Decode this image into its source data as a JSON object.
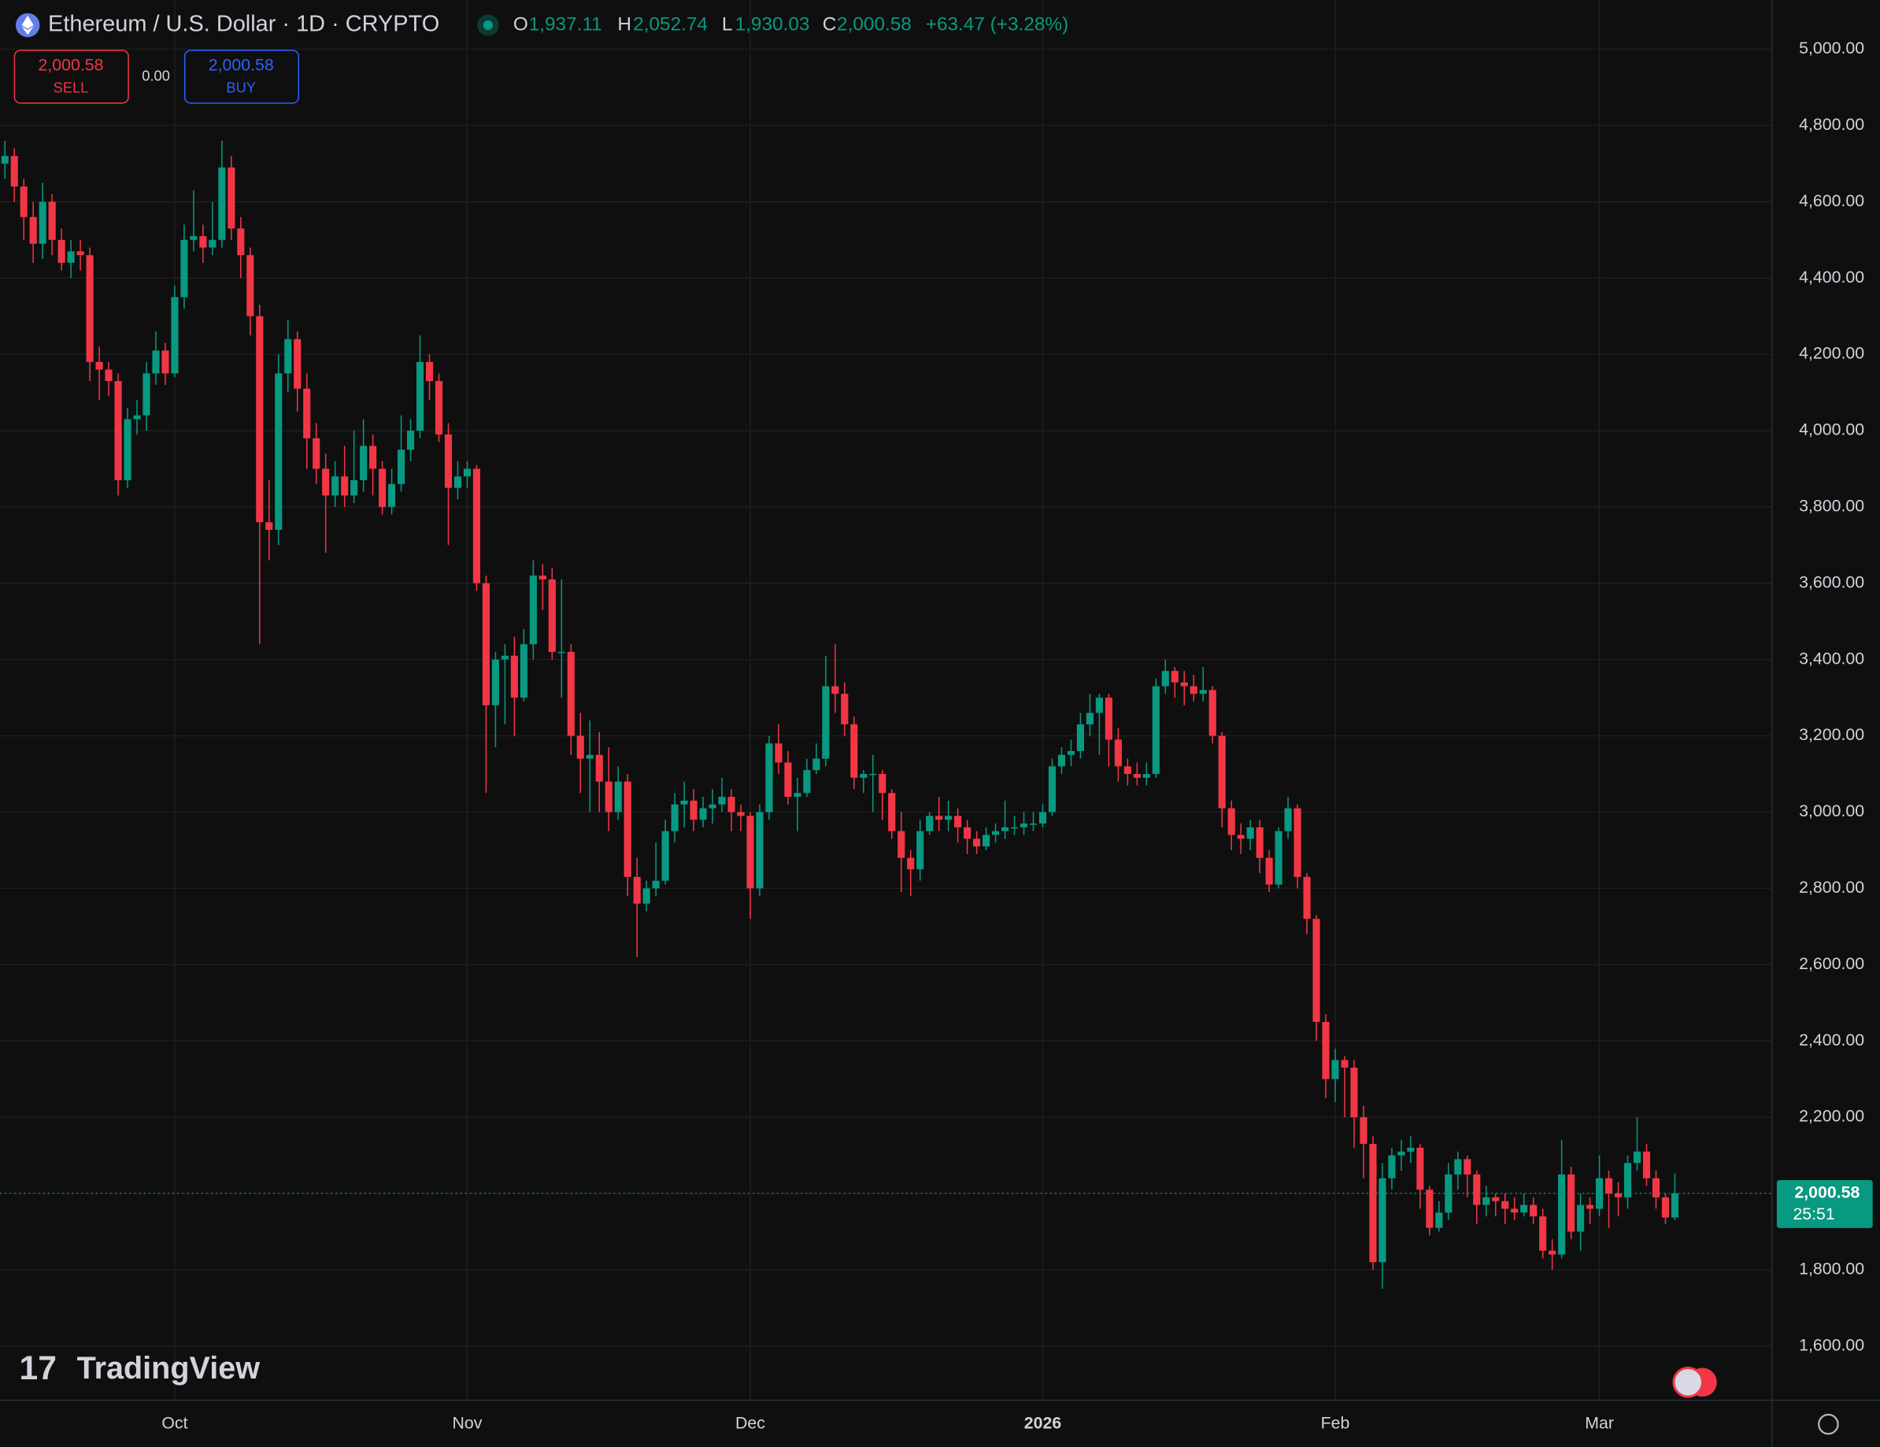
{
  "header": {
    "symbol": "Ethereum / U.S. Dollar · 1D · CRYPTO",
    "o_label": "O",
    "o": "1,937.11",
    "h_label": "H",
    "h": "2,052.74",
    "l_label": "L",
    "l": "1,930.03",
    "c_label": "C",
    "c": "2,000.58",
    "change": "+63.47 (+3.28%)"
  },
  "trade": {
    "sell_price": "2,000.58",
    "sell": "SELL",
    "spread": "0.00",
    "buy_price": "2,000.58",
    "buy": "BUY"
  },
  "price_tag": {
    "price": "2,000.58",
    "countdown": "25:51"
  },
  "logo": "TradingView",
  "chart_data": {
    "type": "candlestick",
    "up_color": "#089981",
    "down_color": "#f23645",
    "grid": true,
    "categories": [
      null,
      null,
      null,
      null,
      null,
      null,
      null,
      null,
      null,
      null,
      null,
      null,
      null,
      null,
      null,
      null,
      null,
      null,
      "Oct",
      null,
      null,
      null,
      null,
      null,
      null,
      null,
      null,
      null,
      null,
      null,
      null,
      null,
      null,
      null,
      null,
      null,
      null,
      null,
      null,
      null,
      null,
      null,
      null,
      null,
      null,
      null,
      null,
      null,
      null,
      "Nov",
      null,
      null,
      null,
      null,
      null,
      null,
      null,
      null,
      null,
      null,
      null,
      null,
      null,
      null,
      null,
      null,
      null,
      null,
      null,
      null,
      null,
      null,
      null,
      null,
      null,
      null,
      null,
      null,
      null,
      "Dec",
      null,
      null,
      null,
      null,
      null,
      null,
      null,
      null,
      null,
      null,
      null,
      null,
      null,
      null,
      null,
      null,
      null,
      null,
      null,
      null,
      null,
      null,
      null,
      null,
      null,
      null,
      null,
      null,
      null,
      null,
      "2026",
      null,
      null,
      null,
      null,
      null,
      null,
      null,
      null,
      null,
      null,
      null,
      null,
      null,
      null,
      null,
      null,
      null,
      null,
      null,
      null,
      null,
      null,
      null,
      null,
      null,
      null,
      null,
      null,
      null,
      null,
      "Feb",
      null,
      null,
      null,
      null,
      null,
      null,
      null,
      null,
      null,
      null,
      null,
      null,
      null,
      null,
      null,
      null,
      null,
      null,
      null,
      null,
      null,
      null,
      null,
      null,
      null,
      null,
      null,
      "Mar",
      null,
      null,
      null,
      null,
      null,
      null,
      null,
      null
    ],
    "open": [
      4700,
      4720,
      4640,
      4560,
      4490,
      4600,
      4500,
      4440,
      4470,
      4460,
      4180,
      4160,
      4130,
      3870,
      4030,
      4040,
      4150,
      4210,
      4150,
      4350,
      4500,
      4510,
      4480,
      4500,
      4690,
      4530,
      4460,
      4300,
      3760,
      3740,
      4150,
      4240,
      4110,
      3980,
      3900,
      3830,
      3880,
      3830,
      3870,
      3960,
      3900,
      3800,
      3860,
      3950,
      4000,
      4180,
      4130,
      3990,
      3850,
      3880,
      3900,
      3600,
      3280,
      3400,
      3410,
      3300,
      3440,
      3620,
      3610,
      3420,
      3420,
      3200,
      3140,
      3150,
      3080,
      3000,
      3080,
      2830,
      2760,
      2800,
      2820,
      2950,
      3020,
      3030,
      2980,
      3010,
      3020,
      3040,
      3000,
      2990,
      2800,
      3000,
      3180,
      3130,
      3040,
      3050,
      3110,
      3140,
      3330,
      3310,
      3230,
      3090,
      3100,
      3100,
      3050,
      2950,
      2880,
      2850,
      2950,
      2990,
      2980,
      2990,
      2960,
      2930,
      2910,
      2940,
      2950,
      2960,
      2960,
      2970,
      2970,
      3000,
      3120,
      3150,
      3160,
      3230,
      3260,
      3300,
      3190,
      3120,
      3100,
      3090,
      3100,
      3330,
      3370,
      3340,
      3330,
      3310,
      3320,
      3200,
      3010,
      2940,
      2930,
      2960,
      2880,
      2810,
      2950,
      3010,
      2830,
      2720,
      2450,
      2300,
      2350,
      2330,
      2200,
      2130,
      1820,
      2040,
      2100,
      2110,
      2120,
      2010,
      1910,
      1950,
      2050,
      2090,
      2050,
      1970,
      1990,
      1980,
      1960,
      1950,
      1970,
      1940,
      1850,
      1840,
      2050,
      1900,
      1970,
      1960,
      2040,
      2000,
      1990,
      2080,
      2110,
      2040,
      1990,
      1937.11
    ],
    "high": [
      4760,
      4740,
      4660,
      4600,
      4650,
      4620,
      4530,
      4500,
      4500,
      4480,
      4220,
      4180,
      4150,
      4060,
      4080,
      4180,
      4260,
      4230,
      4380,
      4540,
      4630,
      4540,
      4600,
      4760,
      4720,
      4560,
      4480,
      4330,
      3870,
      4200,
      4290,
      4260,
      4150,
      4020,
      3940,
      3920,
      3960,
      4000,
      4030,
      3990,
      3920,
      3900,
      4040,
      4030,
      4250,
      4200,
      4150,
      4020,
      3920,
      3920,
      3910,
      3620,
      3420,
      3440,
      3460,
      3480,
      3660,
      3650,
      3640,
      3610,
      3440,
      3260,
      3240,
      3210,
      3170,
      3120,
      3100,
      2880,
      2820,
      2920,
      2980,
      3050,
      3080,
      3060,
      3040,
      3060,
      3090,
      3060,
      3020,
      3000,
      3020,
      3200,
      3230,
      3160,
      3090,
      3140,
      3180,
      3410,
      3440,
      3340,
      3250,
      3110,
      3150,
      3110,
      3060,
      3000,
      2900,
      2980,
      3000,
      3040,
      3030,
      3010,
      2980,
      2950,
      2960,
      2970,
      3030,
      2990,
      3000,
      3000,
      3020,
      3140,
      3170,
      3190,
      3260,
      3310,
      3310,
      3310,
      3220,
      3140,
      3130,
      3130,
      3350,
      3400,
      3380,
      3370,
      3360,
      3380,
      3330,
      3210,
      3030,
      2970,
      2980,
      2980,
      2900,
      2960,
      3040,
      3020,
      2840,
      2730,
      2470,
      2380,
      2360,
      2350,
      2230,
      2150,
      2080,
      2120,
      2140,
      2150,
      2130,
      2020,
      1980,
      2080,
      2110,
      2100,
      2060,
      2020,
      2000,
      2000,
      1990,
      2000,
      1990,
      1960,
      1880,
      2140,
      2070,
      2000,
      1990,
      2100,
      2060,
      2030,
      2100,
      2200,
      2130,
      2060,
      2000,
      2052.74
    ],
    "low": [
      4660,
      4600,
      4500,
      4440,
      4450,
      4460,
      4420,
      4400,
      4420,
      4130,
      4080,
      4090,
      3830,
      3850,
      3990,
      4000,
      4120,
      4120,
      4140,
      4320,
      4470,
      4440,
      4460,
      4480,
      4500,
      4400,
      4250,
      3440,
      3660,
      3700,
      4100,
      4050,
      3900,
      3860,
      3680,
      3800,
      3800,
      3810,
      3840,
      3830,
      3780,
      3780,
      3840,
      3920,
      3980,
      4080,
      3970,
      3700,
      3820,
      3850,
      3580,
      3050,
      3170,
      3230,
      3200,
      3290,
      3400,
      3530,
      3400,
      3300,
      3150,
      3050,
      3000,
      3000,
      2950,
      2980,
      2780,
      2620,
      2740,
      2780,
      2810,
      2920,
      2960,
      2950,
      2960,
      2970,
      3000,
      2950,
      2950,
      2720,
      2780,
      2980,
      3100,
      3020,
      2950,
      3040,
      3100,
      3120,
      3260,
      3200,
      3060,
      3050,
      3000,
      2980,
      2930,
      2790,
      2780,
      2820,
      2940,
      2950,
      2950,
      2920,
      2890,
      2890,
      2900,
      2920,
      2930,
      2940,
      2940,
      2950,
      2960,
      2990,
      3100,
      3120,
      3140,
      3200,
      3150,
      3120,
      3080,
      3070,
      3070,
      3070,
      3090,
      3310,
      3300,
      3280,
      3290,
      3290,
      3180,
      2960,
      2900,
      2890,
      2900,
      2840,
      2790,
      2800,
      2930,
      2800,
      2680,
      2400,
      2250,
      2240,
      2200,
      2120,
      2040,
      1800,
      1750,
      2010,
      2060,
      2080,
      1960,
      1890,
      1900,
      1930,
      2010,
      1990,
      1920,
      1940,
      1940,
      1920,
      1930,
      1940,
      1920,
      1830,
      1800,
      1830,
      1880,
      1850,
      1920,
      1940,
      1910,
      1940,
      1960,
      2060,
      2020,
      1960,
      1920,
      1930.03
    ],
    "close": [
      4720,
      4640,
      4560,
      4490,
      4600,
      4500,
      4440,
      4470,
      4460,
      4180,
      4160,
      4130,
      3870,
      4030,
      4040,
      4150,
      4210,
      4150,
      4350,
      4500,
      4510,
      4480,
      4500,
      4690,
      4530,
      4460,
      4300,
      3760,
      3740,
      4150,
      4240,
      4110,
      3980,
      3900,
      3830,
      3880,
      3830,
      3870,
      3960,
      3900,
      3800,
      3860,
      3950,
      4000,
      4180,
      4130,
      3990,
      3850,
      3880,
      3900,
      3600,
      3280,
      3400,
      3410,
      3300,
      3440,
      3620,
      3610,
      3420,
      3420,
      3200,
      3140,
      3150,
      3080,
      3000,
      3080,
      2830,
      2760,
      2800,
      2820,
      2950,
      3020,
      3030,
      2980,
      3010,
      3020,
      3040,
      3000,
      2990,
      2800,
      3000,
      3180,
      3130,
      3040,
      3050,
      3110,
      3140,
      3330,
      3310,
      3230,
      3090,
      3100,
      3100,
      3050,
      2950,
      2880,
      2850,
      2950,
      2990,
      2980,
      2990,
      2960,
      2930,
      2910,
      2940,
      2950,
      2960,
      2960,
      2970,
      2970,
      3000,
      3120,
      3150,
      3160,
      3230,
      3260,
      3300,
      3190,
      3120,
      3100,
      3090,
      3100,
      3330,
      3370,
      3340,
      3330,
      3310,
      3320,
      3200,
      3010,
      2940,
      2930,
      2960,
      2880,
      2810,
      2950,
      3010,
      2830,
      2720,
      2450,
      2300,
      2350,
      2330,
      2200,
      2130,
      1820,
      2040,
      2100,
      2110,
      2120,
      2010,
      1910,
      1950,
      2050,
      2090,
      2050,
      1970,
      1990,
      1980,
      1960,
      1950,
      1970,
      1940,
      1850,
      1840,
      2050,
      1900,
      1970,
      1960,
      2040,
      2000,
      1990,
      2080,
      2110,
      2040,
      1990,
      1937.11,
      2000.58
    ],
    "ylim": [
      1458,
      5129
    ],
    "yticks": [
      {
        "value": 1600,
        "label": "1,600.00"
      },
      {
        "value": 1800,
        "label": "1,800.00"
      },
      {
        "value": 2000,
        "label": "2,000.00"
      },
      {
        "value": 2200,
        "label": "2,200.00"
      },
      {
        "value": 2400,
        "label": "2,400.00"
      },
      {
        "value": 2600,
        "label": "2,600.00"
      },
      {
        "value": 2800,
        "label": "2,800.00"
      },
      {
        "value": 3000,
        "label": "3,000.00"
      },
      {
        "value": 3200,
        "label": "3,200.00"
      },
      {
        "value": 3400,
        "label": "3,400.00"
      },
      {
        "value": 3600,
        "label": "3,600.00"
      },
      {
        "value": 3800,
        "label": "3,800.00"
      },
      {
        "value": 4000,
        "label": "4,000.00"
      },
      {
        "value": 4200,
        "label": "4,200.00"
      },
      {
        "value": 4400,
        "label": "4,400.00"
      },
      {
        "value": 4600,
        "label": "4,600.00"
      },
      {
        "value": 4800,
        "label": "4,800.00"
      },
      {
        "value": 5000,
        "label": "5,000.00"
      }
    ]
  }
}
